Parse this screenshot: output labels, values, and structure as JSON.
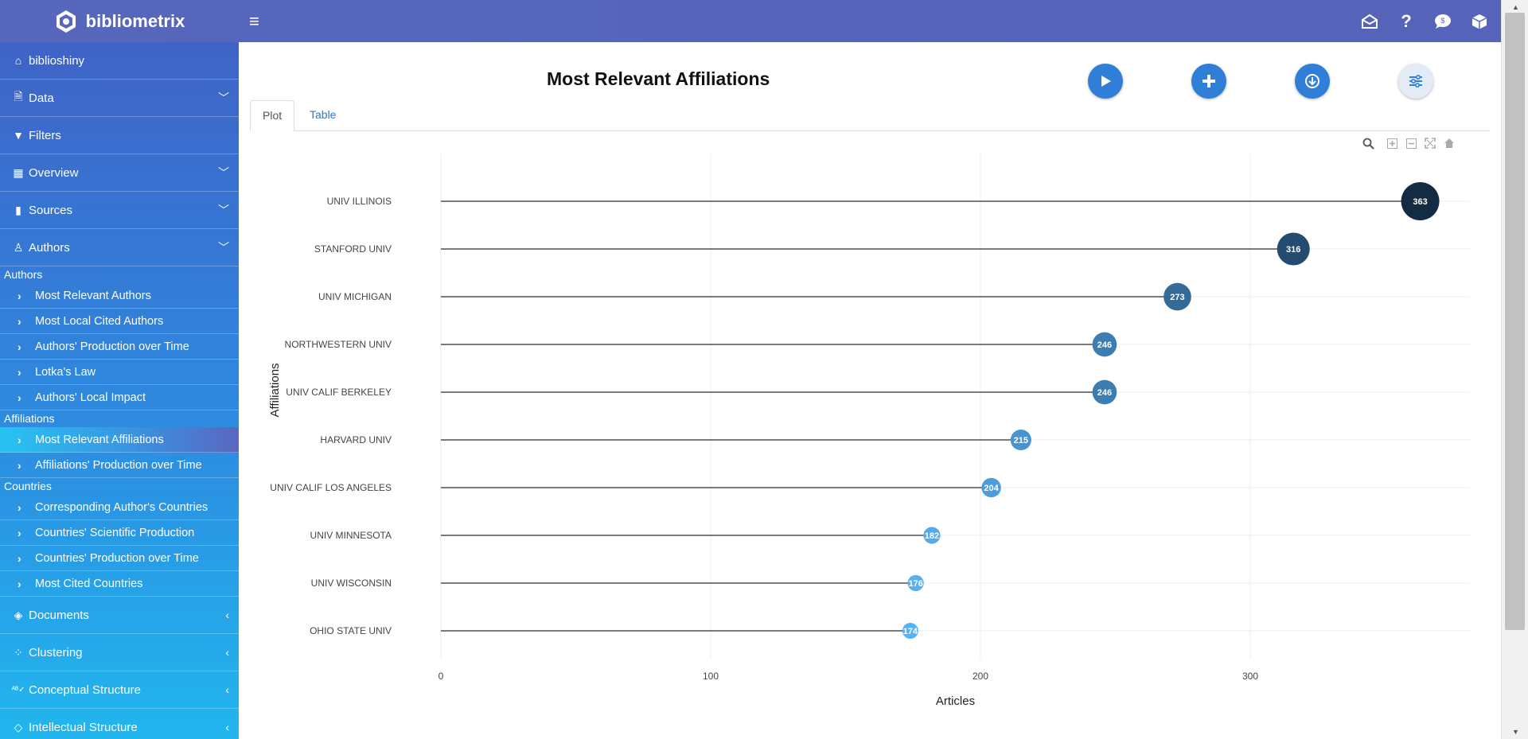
{
  "header": {
    "brand": "bibliometrix",
    "icons": [
      "envelope-open-icon",
      "question-icon",
      "comment-icon",
      "cube-icon"
    ]
  },
  "sidebar": {
    "items_top": [
      {
        "label": "biblioshiny",
        "icon": "home-icon",
        "chevron": ""
      },
      {
        "label": "Data",
        "icon": "file-import-icon",
        "chevron": "down"
      },
      {
        "label": "Filters",
        "icon": "filter-icon",
        "chevron": ""
      },
      {
        "label": "Overview",
        "icon": "table-icon",
        "chevron": "down"
      },
      {
        "label": "Sources",
        "icon": "book-icon",
        "chevron": "down"
      },
      {
        "label": "Authors",
        "icon": "user-icon",
        "chevron": "down"
      }
    ],
    "groups": [
      {
        "title": "Authors",
        "items": [
          "Most Relevant Authors",
          "Most Local Cited Authors",
          "Authors' Production over Time",
          "Lotka's Law",
          "Authors' Local Impact"
        ]
      },
      {
        "title": "Affiliations",
        "items": [
          "Most Relevant Affiliations",
          "Affiliations' Production over Time"
        ]
      },
      {
        "title": "Countries",
        "items": [
          "Corresponding Author's Countries",
          "Countries' Scientific Production",
          "Countries' Production over Time",
          "Most Cited Countries"
        ]
      }
    ],
    "active_item": "Most Relevant Affiliations",
    "items_bottom": [
      {
        "label": "Documents",
        "icon": "layers-icon",
        "chevron": "left"
      },
      {
        "label": "Clustering",
        "icon": "spinner-icon",
        "chevron": "left"
      },
      {
        "label": "Conceptual Structure",
        "icon": "spell-check-icon",
        "chevron": "left"
      },
      {
        "label": "Intellectual Structure",
        "icon": "gem-icon",
        "chevron": "left"
      }
    ]
  },
  "main": {
    "title": "Most Relevant Affiliations",
    "actions": [
      "play-button",
      "add-button",
      "download-button",
      "settings-button"
    ],
    "tabs": [
      {
        "label": "Plot",
        "active": true
      },
      {
        "label": "Table",
        "active": false
      }
    ],
    "modebar": [
      "zoom-icon",
      "zoom-in-icon",
      "zoom-out-icon",
      "autoscale-icon",
      "reset-axes-icon"
    ]
  },
  "chart_data": {
    "type": "scatter",
    "subtype": "lollipop",
    "title": "",
    "xlabel": "Articles",
    "ylabel": "Affiliations",
    "xlim": [
      0,
      363
    ],
    "xticks": [
      0,
      100,
      200,
      300
    ],
    "grid": true,
    "categories": [
      "UNIV ILLINOIS",
      "STANFORD UNIV",
      "UNIV MICHIGAN",
      "NORTHWESTERN UNIV",
      "UNIV CALIF BERKELEY",
      "HARVARD UNIV",
      "UNIV CALIF LOS ANGELES",
      "UNIV MINNESOTA",
      "UNIV WISCONSIN",
      "OHIO STATE UNIV"
    ],
    "values": [
      363,
      316,
      273,
      246,
      246,
      215,
      204,
      182,
      176,
      174
    ],
    "color_low": "#56B1F7",
    "color_high": "#132B43"
  }
}
